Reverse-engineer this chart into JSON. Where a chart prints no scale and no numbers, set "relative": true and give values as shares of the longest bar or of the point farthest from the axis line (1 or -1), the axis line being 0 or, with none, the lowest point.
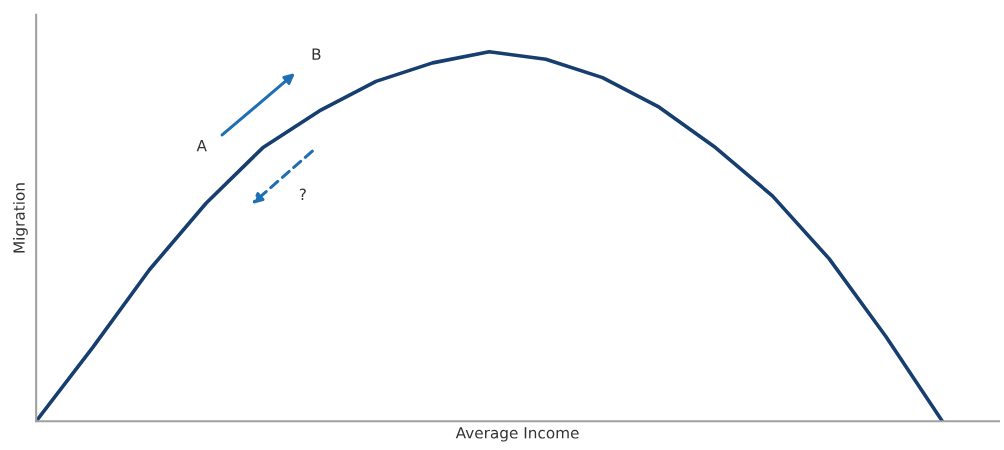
{
  "chart_data": {
    "type": "line",
    "relative": true,
    "xlabel": "Average Income",
    "ylabel": "Migration",
    "categories": [
      null,
      null,
      null,
      null,
      null,
      null,
      null,
      null,
      null,
      null,
      null,
      null,
      null,
      null,
      null,
      null,
      null,
      null
    ],
    "series": [
      {
        "color": "#163e6e",
        "values": [
          0,
          0.2,
          0.41,
          0.59,
          0.74,
          0.84,
          0.92,
          0.97,
          1,
          0.98,
          0.93,
          0.85,
          0.74,
          0.61,
          0.44,
          0.23,
          0,
          null
        ]
      }
    ],
    "annotations": [
      "A",
      "B",
      "?"
    ],
    "tick_labels": false,
    "legend": false,
    "marker": "none",
    "line_style": "solid"
  }
}
